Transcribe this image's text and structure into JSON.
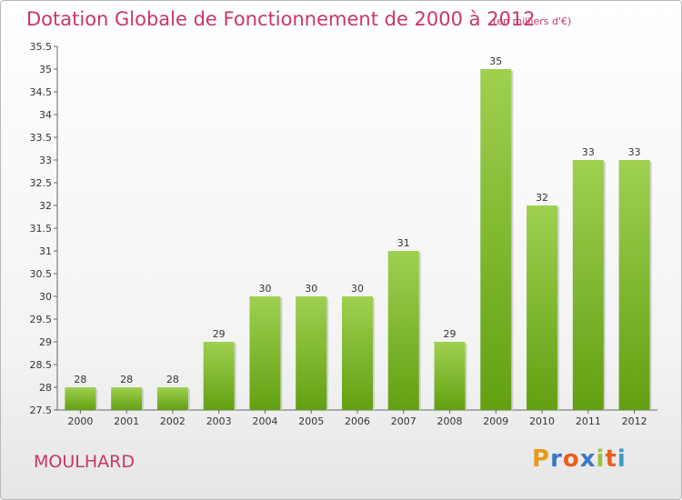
{
  "title": "Dotation Globale de Fonctionnement de 2000 à 2012",
  "subtitle": "(en milliers d'€)",
  "commune": "MOULHARD",
  "logo": {
    "letters": [
      "P",
      "r",
      "o",
      "x",
      "i",
      "t",
      "i"
    ],
    "colors": [
      "#e89a1c",
      "#3a78c9",
      "#e8601c",
      "#3a78c9",
      "#9ac43a",
      "#e8601c",
      "#3a9ac9"
    ]
  },
  "colors": {
    "bar_top": "#9fd050",
    "bar_bottom": "#62a012",
    "title": "#c8366b"
  },
  "chart_data": {
    "type": "bar",
    "title": "Dotation Globale de Fonctionnement de 2000 à 2012",
    "categories": [
      "2000",
      "2001",
      "2002",
      "2003",
      "2004",
      "2005",
      "2006",
      "2007",
      "2008",
      "2009",
      "2010",
      "2011",
      "2012"
    ],
    "values": [
      28,
      28,
      28,
      29,
      30,
      30,
      30,
      31,
      29,
      35,
      32,
      33,
      33
    ],
    "ylim": [
      27.5,
      35.5
    ],
    "yticks": [
      "27.5",
      "28",
      "28.5",
      "29",
      "29.5",
      "30",
      "30.5",
      "31",
      "31.5",
      "32",
      "32.5",
      "33",
      "33.5",
      "34",
      "34.5",
      "35",
      "35.5"
    ],
    "grid": false,
    "xlabel": "",
    "ylabel": ""
  }
}
